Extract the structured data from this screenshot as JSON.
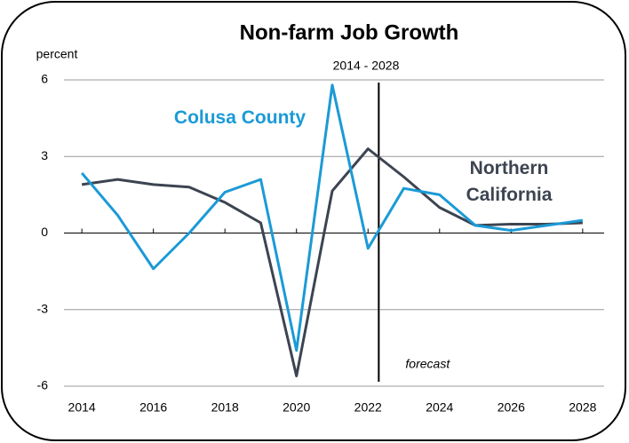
{
  "chart_data": {
    "type": "line",
    "title": "Non-farm Job Growth",
    "subtitle": "2014 - 2028",
    "y_label": "percent",
    "x": [
      2014,
      2015,
      2016,
      2017,
      2018,
      2019,
      2020,
      2021,
      2022,
      2023,
      2024,
      2025,
      2026,
      2027,
      2028
    ],
    "series": [
      {
        "name": "Colusa County",
        "color": "#1b9ad6",
        "values": [
          2.35,
          0.7,
          -1.4,
          0.0,
          1.6,
          2.1,
          -4.6,
          5.8,
          -0.6,
          1.75,
          1.5,
          0.3,
          0.1,
          0.3,
          0.5
        ]
      },
      {
        "name": "Northern California",
        "color": "#3d4451",
        "values": [
          1.9,
          2.1,
          1.9,
          1.8,
          1.2,
          0.4,
          -5.6,
          1.65,
          3.3,
          2.2,
          1.0,
          0.3,
          0.35,
          0.35,
          0.4
        ]
      }
    ],
    "forecast_line": {
      "x": 2022.3,
      "label": "forecast"
    },
    "xlim": [
      2013.5,
      2028.6
    ],
    "xticks": [
      2014,
      2016,
      2018,
      2020,
      2022,
      2024,
      2026,
      2028
    ],
    "ylim": [
      -6,
      6
    ],
    "yticks": [
      -6,
      -3,
      0,
      3,
      6
    ],
    "grid": true
  }
}
